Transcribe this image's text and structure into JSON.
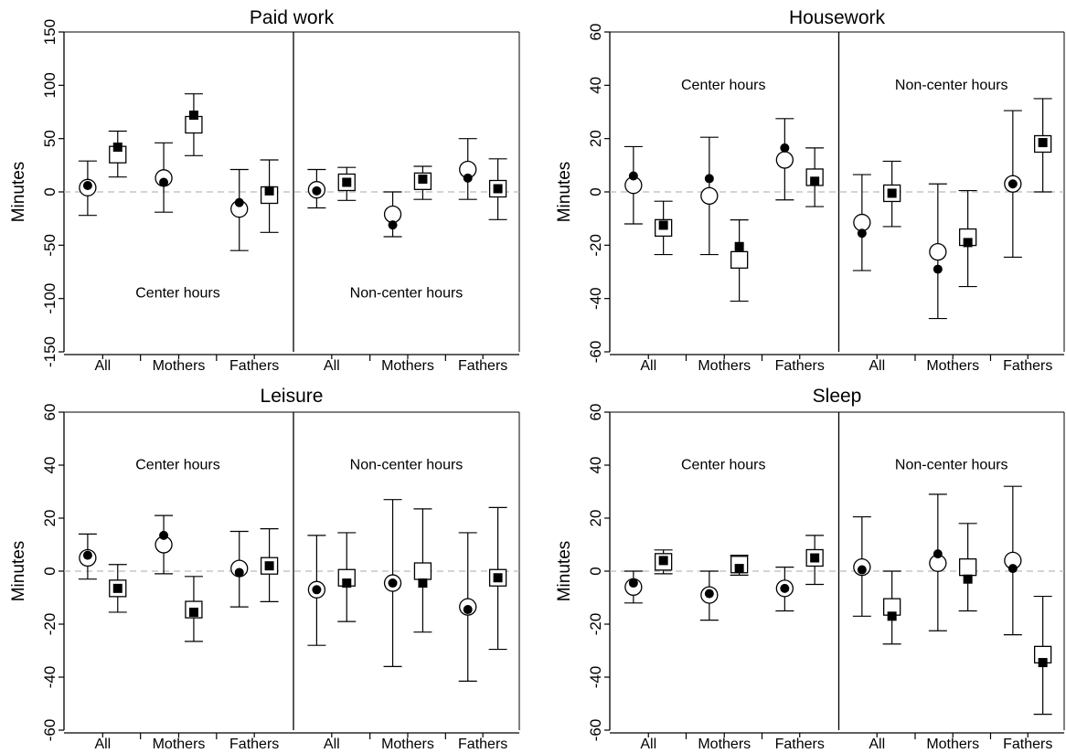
{
  "chart_data": [
    {
      "type": "scatter",
      "title": "Paid work",
      "ylabel": "Minutes",
      "ylim": [
        -150,
        150
      ],
      "yticks": [
        -150,
        -100,
        -50,
        0,
        50,
        100,
        150
      ],
      "categories": [
        "All",
        "Mothers",
        "Fathers",
        "All",
        "Mothers",
        "Fathers"
      ],
      "panel_labels": [
        "Center hours",
        "Non-center hours"
      ],
      "label_position": "bottom",
      "series": [
        {
          "marker": "open-circle",
          "values": [
            4,
            13,
            -16,
            2,
            -21,
            21
          ],
          "ci_low": [
            -22,
            -19,
            -55,
            -15,
            -42,
            -7
          ],
          "ci_high": [
            29,
            46,
            21,
            21,
            0,
            50
          ]
        },
        {
          "marker": "filled-circle",
          "values": [
            6,
            9,
            -10,
            1,
            -31,
            13
          ]
        },
        {
          "marker": "open-square",
          "values": [
            35,
            63,
            -3,
            9,
            10,
            3
          ],
          "ci_low": [
            14,
            34,
            -38,
            -8,
            -7,
            -26
          ],
          "ci_high": [
            57,
            92,
            30,
            23,
            24,
            31
          ]
        },
        {
          "marker": "filled-square",
          "values": [
            42,
            72,
            1,
            9,
            12,
            3
          ]
        }
      ]
    },
    {
      "type": "scatter",
      "title": "Housework",
      "ylabel": "Minutes",
      "ylim": [
        -60,
        60
      ],
      "yticks": [
        -60,
        -40,
        -20,
        0,
        20,
        40,
        60
      ],
      "categories": [
        "All",
        "Mothers",
        "Fathers",
        "All",
        "Mothers",
        "Fathers"
      ],
      "panel_labels": [
        "Center hours",
        "Non-center hours"
      ],
      "label_position": "top",
      "series": [
        {
          "marker": "open-circle",
          "values": [
            2.5,
            -1.5,
            12,
            -11.5,
            -22.5,
            3
          ],
          "ci_low": [
            -12,
            -23.5,
            -3,
            -29.5,
            -47.5,
            -24.5
          ],
          "ci_high": [
            17,
            20.5,
            27.5,
            6.5,
            3,
            30.5
          ]
        },
        {
          "marker": "filled-circle",
          "values": [
            6,
            5,
            16.5,
            -15.5,
            -29,
            3
          ]
        },
        {
          "marker": "open-square",
          "values": [
            -13.5,
            -25.5,
            5.5,
            -0.5,
            -17,
            18
          ],
          "ci_low": [
            -23.5,
            -41,
            -5.5,
            -13,
            -35.5,
            0
          ],
          "ci_high": [
            -3.5,
            -10.5,
            16.5,
            11.5,
            0.5,
            35
          ]
        },
        {
          "marker": "filled-square",
          "values": [
            -12.5,
            -20.5,
            4,
            -0.5,
            -19,
            18.5
          ]
        }
      ]
    },
    {
      "type": "scatter",
      "title": "Leisure",
      "ylabel": "Minutes",
      "ylim": [
        -60,
        60
      ],
      "yticks": [
        -60,
        -40,
        -20,
        0,
        20,
        40,
        60
      ],
      "categories": [
        "All",
        "Mothers",
        "Fathers",
        "All",
        "Mothers",
        "Fathers"
      ],
      "panel_labels": [
        "Center hours",
        "Non-center hours"
      ],
      "label_position": "top",
      "series": [
        {
          "marker": "open-circle",
          "values": [
            5,
            10,
            1,
            -7,
            -4.5,
            -13.5
          ],
          "ci_low": [
            -3,
            -1,
            -13.5,
            -28,
            -36,
            -41.5
          ],
          "ci_high": [
            14,
            21,
            15,
            13.5,
            27,
            14.5
          ]
        },
        {
          "marker": "filled-circle",
          "values": [
            6,
            13.5,
            -0.5,
            -7,
            -4.5,
            -14.5
          ]
        },
        {
          "marker": "open-square",
          "values": [
            -6.5,
            -14.5,
            2,
            -2.5,
            0,
            -2.5
          ],
          "ci_low": [
            -15.5,
            -26.5,
            -11.5,
            -19,
            -23,
            -29.5
          ],
          "ci_high": [
            2.5,
            -2,
            16,
            14.5,
            23.5,
            24
          ]
        },
        {
          "marker": "filled-square",
          "values": [
            -6.5,
            -15.5,
            2,
            -4.5,
            -4.5,
            -2.5
          ]
        }
      ]
    },
    {
      "type": "scatter",
      "title": "Sleep",
      "ylabel": "Minutes",
      "ylim": [
        -60,
        60
      ],
      "yticks": [
        -60,
        -40,
        -20,
        0,
        20,
        40,
        60
      ],
      "categories": [
        "All",
        "Mothers",
        "Fathers",
        "All",
        "Mothers",
        "Fathers"
      ],
      "panel_labels": [
        "Center hours",
        "Non-center hours"
      ],
      "label_position": "top",
      "series": [
        {
          "marker": "open-circle",
          "values": [
            -6,
            -9,
            -6.5,
            1.5,
            3,
            4
          ],
          "ci_low": [
            -12,
            -18.5,
            -15,
            -17,
            -22.5,
            -24
          ],
          "ci_high": [
            0,
            0,
            1.5,
            20.5,
            29,
            32
          ]
        },
        {
          "marker": "filled-circle",
          "values": [
            -4.5,
            -8.5,
            -6.5,
            0.5,
            6.5,
            1
          ]
        },
        {
          "marker": "open-square",
          "values": [
            3.5,
            2.5,
            5,
            -13.5,
            1.5,
            -31.5
          ],
          "ci_low": [
            -1,
            -1.5,
            -5,
            -27.5,
            -15,
            -54
          ],
          "ci_high": [
            8,
            6,
            13.5,
            0,
            18,
            -9.5
          ]
        },
        {
          "marker": "filled-square",
          "values": [
            4,
            1,
            5,
            -17,
            -3,
            -34.5
          ]
        }
      ]
    }
  ]
}
